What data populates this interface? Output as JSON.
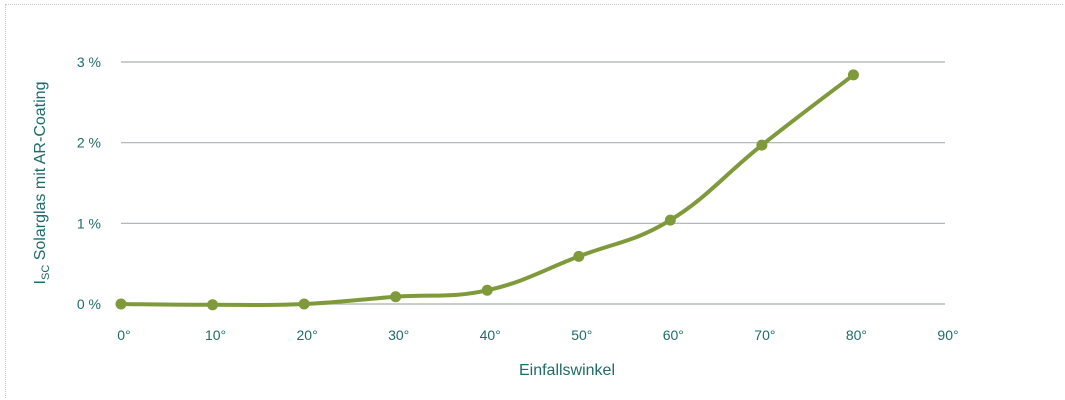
{
  "chart_data": {
    "type": "line",
    "x": [
      0,
      10,
      20,
      30,
      40,
      50,
      60,
      70,
      80
    ],
    "series": [
      {
        "values": [
          0.0,
          -0.01,
          0.0,
          0.09,
          0.17,
          0.59,
          1.04,
          1.97,
          2.84
        ]
      }
    ],
    "xticks": [
      "0°",
      "10°",
      "20°",
      "30°",
      "40°",
      "50°",
      "60°",
      "70°",
      "80°",
      "90°"
    ],
    "yticks": [
      "0 %",
      "1 %",
      "2 %",
      "3 %"
    ],
    "xlabel": "Einfallswinkel",
    "ylabel_main": "I",
    "ylabel_sub": "SC",
    "ylabel_rest": " Solarglas mit AR-Coating",
    "xlim": [
      0,
      90
    ],
    "ylim": [
      0,
      3
    ],
    "grid": "horizontal",
    "colors": {
      "line": "#7f9a3a",
      "grid": "#a7b0b5",
      "text": "#1e6b6b"
    }
  }
}
